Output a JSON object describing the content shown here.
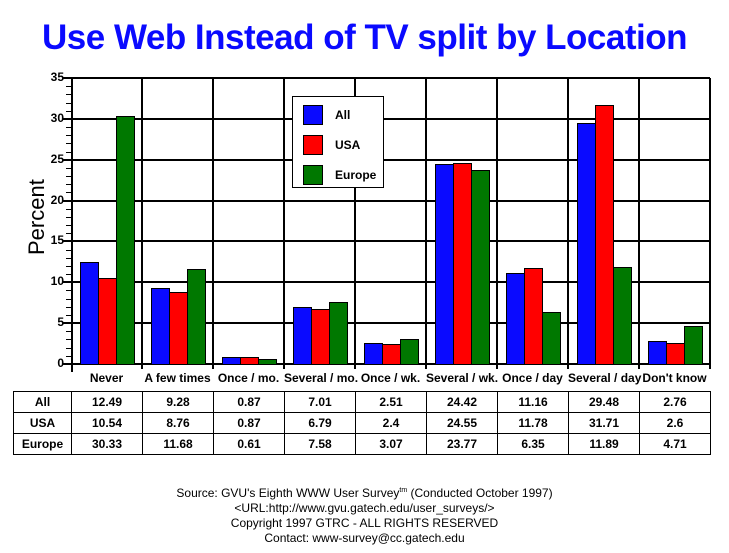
{
  "title": "Use Web Instead of TV split by Location",
  "chart_data": {
    "type": "bar",
    "title": "Use Web Instead of TV split by Location",
    "xlabel": "",
    "ylabel": "Percent",
    "ylim": [
      0,
      35
    ],
    "yticks": [
      0,
      5,
      10,
      15,
      20,
      25,
      30,
      35
    ],
    "grid": true,
    "legend_position": "upper-center inside plot",
    "categories": [
      "Never",
      "A few times",
      "Once / mo.",
      "Several / mo.",
      "Once / wk.",
      "Several / wk.",
      "Once / day",
      "Several / day",
      "Don't know"
    ],
    "series": [
      {
        "name": "All",
        "color": "#0a0aff",
        "values": [
          12.49,
          9.28,
          0.87,
          7.01,
          2.51,
          24.42,
          11.16,
          29.48,
          2.76
        ]
      },
      {
        "name": "USA",
        "color": "#ff0000",
        "values": [
          10.54,
          8.76,
          0.87,
          6.79,
          2.4,
          24.55,
          11.78,
          31.71,
          2.6
        ]
      },
      {
        "name": "Europe",
        "color": "#007800",
        "values": [
          30.33,
          11.68,
          0.61,
          7.58,
          3.07,
          23.77,
          6.35,
          11.89,
          4.71
        ]
      }
    ]
  },
  "table": {
    "rows": [
      {
        "label": "All",
        "values": [
          "12.49",
          "9.28",
          "0.87",
          "7.01",
          "2.51",
          "24.42",
          "11.16",
          "29.48",
          "2.76"
        ]
      },
      {
        "label": "USA",
        "values": [
          "10.54",
          "8.76",
          "0.87",
          "6.79",
          "2.4",
          "24.55",
          "11.78",
          "31.71",
          "2.6"
        ]
      },
      {
        "label": "Europe",
        "values": [
          "30.33",
          "11.68",
          "0.61",
          "7.58",
          "3.07",
          "23.77",
          "6.35",
          "11.89",
          "4.71"
        ]
      }
    ]
  },
  "source": {
    "line1_prefix": "Source: GVU's Eighth WWW User Survey",
    "line1_sup": "tm",
    "line1_suffix": " (Conducted October 1997)",
    "line2": "<URL:http://www.gvu.gatech.edu/user_surveys/>",
    "line3": "Copyright 1997 GTRC - ALL RIGHTS RESERVED",
    "line4": "Contact: www-survey@cc.gatech.edu"
  }
}
